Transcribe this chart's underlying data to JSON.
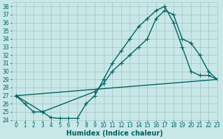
{
  "xlabel": "Humidex (Indice chaleur)",
  "bg_color": "#c8e8e8",
  "grid_color": "#a8c8c8",
  "line_color": "#006060",
  "xlim": [
    -0.5,
    23
  ],
  "ylim": [
    24,
    38.5
  ],
  "yticks": [
    24,
    25,
    26,
    27,
    28,
    29,
    30,
    31,
    32,
    33,
    34,
    35,
    36,
    37,
    38
  ],
  "xticks": [
    0,
    1,
    2,
    3,
    4,
    5,
    6,
    7,
    8,
    9,
    10,
    11,
    12,
    13,
    14,
    15,
    16,
    17,
    18,
    19,
    20,
    21,
    22,
    23
  ],
  "line1_x": [
    0,
    1,
    2,
    3,
    4,
    5,
    6,
    7,
    8,
    9,
    10,
    11,
    12,
    13,
    14,
    15,
    16,
    17,
    18,
    19,
    20,
    21,
    22,
    23
  ],
  "line1_y": [
    27,
    26,
    25,
    25,
    24.3,
    24.2,
    24.2,
    24.2,
    26,
    27,
    29,
    31,
    32.5,
    34,
    35.5,
    36.5,
    37.5,
    38,
    36,
    33,
    30,
    29.5,
    29.5,
    29
  ],
  "line2_x": [
    0,
    3,
    9,
    10,
    11,
    12,
    13,
    14,
    15,
    16,
    17,
    18,
    19,
    20,
    21,
    22,
    23
  ],
  "line2_y": [
    27,
    25,
    27.5,
    28.5,
    30,
    31,
    32,
    33,
    34,
    36.5,
    37.5,
    37,
    34,
    33.5,
    32,
    30,
    29
  ],
  "line3_x": [
    0,
    23
  ],
  "line3_y": [
    27,
    29
  ],
  "marker": "+",
  "markersize": 4,
  "linewidth": 1.0,
  "xlabel_fontsize": 7,
  "tick_fontsize": 5.5
}
